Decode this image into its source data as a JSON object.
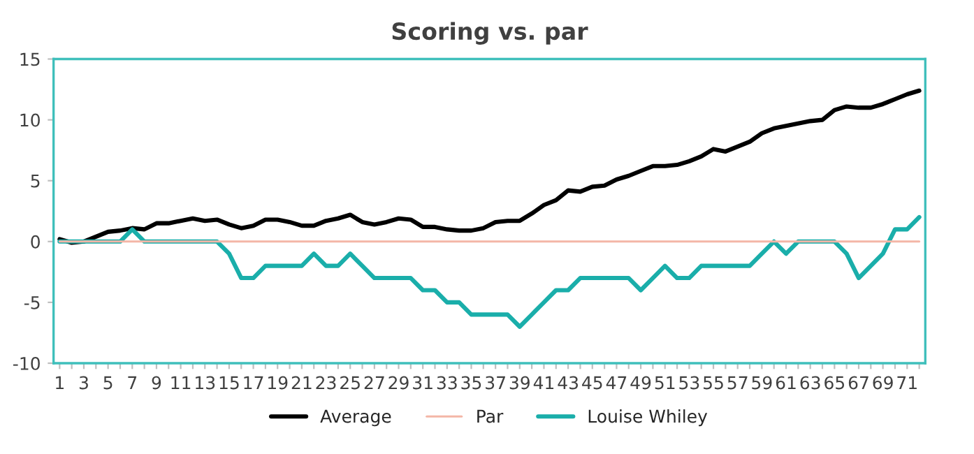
{
  "chart_data": {
    "type": "line",
    "title": "Scoring vs. par",
    "categories": [
      "1",
      null,
      "3",
      null,
      "5",
      null,
      "7",
      null,
      "9",
      null,
      "11",
      null,
      "13",
      null,
      "15",
      null,
      "17",
      null,
      "19",
      null,
      "21",
      null,
      "23",
      null,
      "25",
      null,
      "27",
      null,
      "29",
      null,
      "31",
      null,
      "33",
      null,
      "35",
      null,
      "37",
      null,
      "39",
      null,
      "41",
      null,
      "43",
      null,
      "45",
      null,
      "47",
      null,
      "49",
      null,
      "51",
      null,
      "53",
      null,
      "55",
      null,
      "57",
      null,
      "59",
      null,
      "61",
      null,
      "63",
      null,
      "65",
      null,
      "67",
      null,
      "69",
      null,
      "71",
      null
    ],
    "series": [
      {
        "name": "Average",
        "color": "#000000",
        "values": [
          0.2,
          -0.1,
          0,
          0.4,
          0.8,
          0.9,
          1.1,
          1.0,
          1.5,
          1.5,
          1.7,
          1.9,
          1.7,
          1.8,
          1.4,
          1.1,
          1.3,
          1.8,
          1.8,
          1.6,
          1.3,
          1.3,
          1.7,
          1.9,
          2.2,
          1.6,
          1.4,
          1.6,
          1.9,
          1.8,
          1.2,
          1.2,
          1.0,
          0.9,
          0.9,
          1.1,
          1.6,
          1.7,
          1.7,
          2.3,
          3.0,
          3.4,
          4.2,
          4.1,
          4.5,
          4.6,
          5.1,
          5.4,
          5.8,
          6.2,
          6.2,
          6.3,
          6.6,
          7.0,
          7.6,
          7.4,
          7.8,
          8.2,
          8.9,
          9.3,
          9.5,
          9.7,
          9.9,
          10.0,
          10.8,
          11.1,
          11.0,
          11.0,
          11.3,
          11.7,
          12.1,
          12.4
        ]
      },
      {
        "name": "Par",
        "color": "#f4b6a7",
        "values": [
          0,
          0,
          0,
          0,
          0,
          0,
          0,
          0,
          0,
          0,
          0,
          0,
          0,
          0,
          0,
          0,
          0,
          0,
          0,
          0,
          0,
          0,
          0,
          0,
          0,
          0,
          0,
          0,
          0,
          0,
          0,
          0,
          0,
          0,
          0,
          0,
          0,
          0,
          0,
          0,
          0,
          0,
          0,
          0,
          0,
          0,
          0,
          0,
          0,
          0,
          0,
          0,
          0,
          0,
          0,
          0,
          0,
          0,
          0,
          0,
          0,
          0,
          0,
          0,
          0,
          0,
          0,
          0,
          0,
          0,
          0,
          0
        ]
      },
      {
        "name": "Louise Whiley",
        "color": "#1aaeaa",
        "values": [
          0,
          0,
          0,
          0,
          0,
          0,
          1,
          0,
          0,
          0,
          0,
          0,
          0,
          0,
          -1,
          -3,
          -3,
          -2,
          -2,
          -2,
          -2,
          -1,
          -2,
          -2,
          -1,
          -2,
          -3,
          -3,
          -3,
          -3,
          -4,
          -4,
          -5,
          -5,
          -6,
          -6,
          -6,
          -6,
          -7,
          -6,
          -5,
          -4,
          -4,
          -3,
          -3,
          -3,
          -3,
          -3,
          -4,
          -3,
          -2,
          -3,
          -3,
          -2,
          -2,
          -2,
          -2,
          -2,
          -1,
          0,
          -1,
          0,
          0,
          0,
          0,
          -1,
          -3,
          -2,
          -1,
          1,
          1,
          2
        ]
      }
    ],
    "ylim": [
      -10,
      15
    ],
    "yticks": [
      -10,
      -5,
      0,
      5,
      10,
      15
    ],
    "grid": false,
    "legend": "bottom",
    "line_style": "solid",
    "marker": "none"
  }
}
